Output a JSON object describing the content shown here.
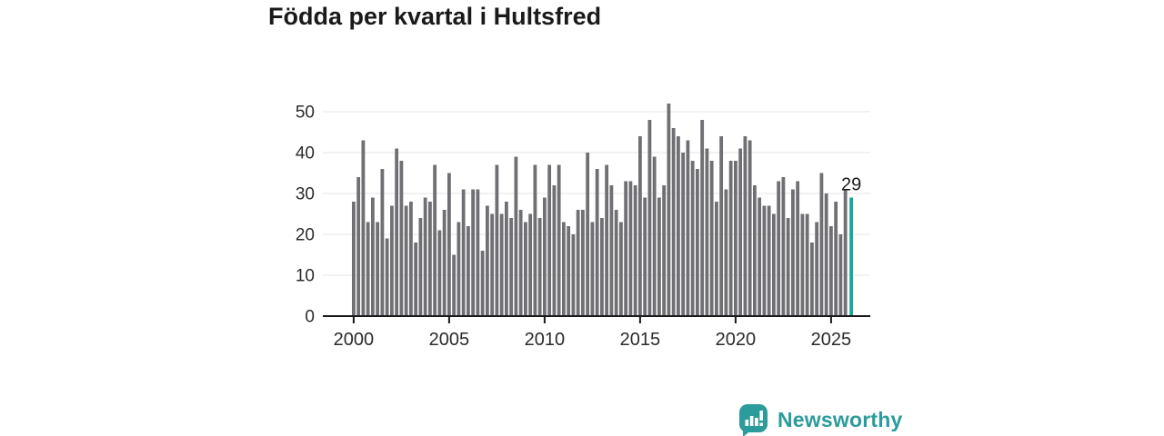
{
  "header": {
    "title": "Födda per kvartal i Hultsfred"
  },
  "chart_data": {
    "type": "bar",
    "title": "Födda per kvartal i Hultsfred",
    "x_tick_labels": [
      "2000",
      "2005",
      "2010",
      "2015",
      "2020",
      "2025"
    ],
    "y_ticks": [
      0,
      10,
      20,
      30,
      40,
      50
    ],
    "ylim": [
      0,
      53
    ],
    "grid": "horizontal",
    "legend": "none",
    "bar_color": "#6f6f74",
    "highlight_color": "#16a699",
    "axis_color": "#1a1a1a",
    "gridline_color": "#e4e4e4",
    "label_color": "#2b2b2b",
    "series": [
      {
        "year": 2000,
        "values": [
          28,
          34,
          43,
          23
        ]
      },
      {
        "year": 2001,
        "values": [
          29,
          23,
          36,
          19
        ]
      },
      {
        "year": 2002,
        "values": [
          27,
          41,
          38,
          27
        ]
      },
      {
        "year": 2003,
        "values": [
          28,
          18,
          24,
          29
        ]
      },
      {
        "year": 2004,
        "values": [
          28,
          37,
          21,
          26
        ]
      },
      {
        "year": 2005,
        "values": [
          35,
          15,
          23,
          31
        ]
      },
      {
        "year": 2006,
        "values": [
          22,
          31,
          31,
          16
        ]
      },
      {
        "year": 2007,
        "values": [
          27,
          25,
          37,
          25
        ]
      },
      {
        "year": 2008,
        "values": [
          28,
          24,
          39,
          26
        ]
      },
      {
        "year": 2009,
        "values": [
          23,
          25,
          37,
          24
        ]
      },
      {
        "year": 2010,
        "values": [
          29,
          37,
          32,
          37
        ]
      },
      {
        "year": 2011,
        "values": [
          23,
          22,
          20,
          26
        ]
      },
      {
        "year": 2012,
        "values": [
          26,
          40,
          23,
          36
        ]
      },
      {
        "year": 2013,
        "values": [
          24,
          37,
          32,
          26
        ]
      },
      {
        "year": 2014,
        "values": [
          23,
          33,
          33,
          32
        ]
      },
      {
        "year": 2015,
        "values": [
          44,
          29,
          48,
          39
        ]
      },
      {
        "year": 2016,
        "values": [
          29,
          32,
          52,
          46
        ]
      },
      {
        "year": 2017,
        "values": [
          44,
          40,
          43,
          38
        ]
      },
      {
        "year": 2018,
        "values": [
          36,
          48,
          41,
          38
        ]
      },
      {
        "year": 2019,
        "values": [
          28,
          44,
          31,
          38
        ]
      },
      {
        "year": 2020,
        "values": [
          38,
          41,
          44,
          43
        ]
      },
      {
        "year": 2021,
        "values": [
          32,
          29,
          27,
          27
        ]
      },
      {
        "year": 2022,
        "values": [
          25,
          33,
          34,
          24
        ]
      },
      {
        "year": 2023,
        "values": [
          31,
          33,
          25,
          25
        ]
      },
      {
        "year": 2024,
        "values": [
          18,
          23,
          35,
          30
        ]
      },
      {
        "year": 2025,
        "values": [
          22,
          28,
          20,
          31
        ]
      }
    ],
    "highlight": {
      "value": 29,
      "label": "29"
    }
  },
  "footer": {
    "brand": "Newsworthy"
  }
}
